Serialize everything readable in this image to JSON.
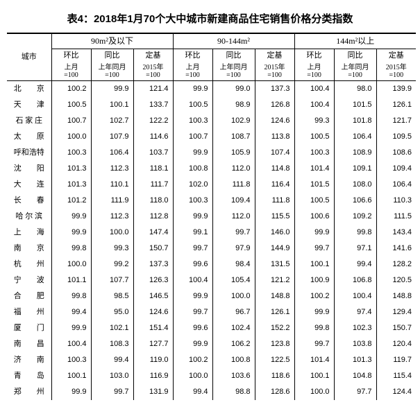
{
  "title": "表4：2018年1月70个大中城市新建商品住宅销售价格分类指数",
  "row_label": "城市",
  "groups": [
    "90m²及以下",
    "90-144m²",
    "144m²以上"
  ],
  "sub_headers": {
    "mom": "环比",
    "yoy": "同比",
    "fixed": "定基",
    "mom_base": "上月\n=100",
    "yoy_base": "上年同月\n=100",
    "fixed_base": "2015年\n=100"
  },
  "rows": [
    {
      "city": "北　　京",
      "v": [
        100.2,
        99.9,
        121.4,
        99.9,
        99.0,
        137.3,
        100.4,
        98.0,
        139.9
      ]
    },
    {
      "city": "天　　津",
      "v": [
        100.5,
        100.1,
        133.7,
        100.5,
        98.9,
        126.8,
        100.4,
        101.5,
        126.1
      ]
    },
    {
      "city": "石 家 庄",
      "v": [
        100.7,
        102.7,
        122.2,
        100.3,
        102.9,
        124.6,
        99.3,
        101.8,
        121.7
      ]
    },
    {
      "city": "太　　原",
      "v": [
        100.0,
        107.9,
        114.6,
        100.7,
        108.7,
        113.8,
        100.5,
        106.4,
        109.5
      ]
    },
    {
      "city": "呼和浩特",
      "v": [
        100.3,
        106.4,
        103.7,
        99.9,
        105.9,
        107.4,
        100.3,
        108.9,
        108.6
      ]
    },
    {
      "city": "沈　　阳",
      "v": [
        101.3,
        112.3,
        118.1,
        100.8,
        112.0,
        114.8,
        101.4,
        109.1,
        109.4
      ]
    },
    {
      "city": "大　　连",
      "v": [
        101.3,
        110.1,
        111.7,
        102.0,
        111.8,
        116.4,
        101.5,
        108.0,
        106.4
      ]
    },
    {
      "city": "长　　春",
      "v": [
        101.2,
        111.9,
        118.0,
        100.3,
        109.4,
        111.8,
        100.5,
        106.6,
        110.3
      ]
    },
    {
      "city": "哈 尔 滨",
      "v": [
        99.9,
        112.3,
        112.8,
        99.9,
        112.0,
        115.5,
        100.6,
        109.2,
        111.5
      ]
    },
    {
      "city": "上　　海",
      "v": [
        99.9,
        100.0,
        147.4,
        99.1,
        99.7,
        146.0,
        99.9,
        99.8,
        143.4
      ]
    },
    {
      "city": "南　　京",
      "v": [
        99.8,
        99.3,
        150.7,
        99.7,
        97.9,
        144.9,
        99.7,
        97.1,
        141.6
      ]
    },
    {
      "city": "杭　　州",
      "v": [
        100.0,
        99.2,
        137.3,
        99.6,
        98.4,
        131.5,
        100.1,
        99.4,
        128.2
      ]
    },
    {
      "city": "宁　　波",
      "v": [
        101.1,
        107.7,
        126.3,
        100.4,
        105.4,
        121.2,
        100.9,
        106.8,
        120.5
      ]
    },
    {
      "city": "合　　肥",
      "v": [
        99.8,
        98.5,
        146.5,
        99.9,
        100.0,
        148.8,
        100.2,
        100.4,
        148.8
      ]
    },
    {
      "city": "福　　州",
      "v": [
        99.4,
        95.0,
        124.6,
        99.7,
        96.7,
        126.1,
        99.9,
        97.4,
        129.4
      ]
    },
    {
      "city": "厦　　门",
      "v": [
        99.9,
        102.1,
        151.4,
        99.6,
        102.4,
        152.2,
        99.8,
        102.3,
        150.7
      ]
    },
    {
      "city": "南　　昌",
      "v": [
        100.4,
        108.3,
        127.7,
        99.9,
        106.2,
        123.8,
        99.7,
        103.8,
        120.4
      ]
    },
    {
      "city": "济　　南",
      "v": [
        100.3,
        99.4,
        119.0,
        100.2,
        100.8,
        122.5,
        101.4,
        101.3,
        119.7
      ]
    },
    {
      "city": "青　　岛",
      "v": [
        100.1,
        103.0,
        116.9,
        100.0,
        103.6,
        118.6,
        100.1,
        104.8,
        115.4
      ]
    },
    {
      "city": "郑　　州",
      "v": [
        99.9,
        99.7,
        131.9,
        99.4,
        98.8,
        128.6,
        100.0,
        97.7,
        124.4
      ]
    }
  ]
}
